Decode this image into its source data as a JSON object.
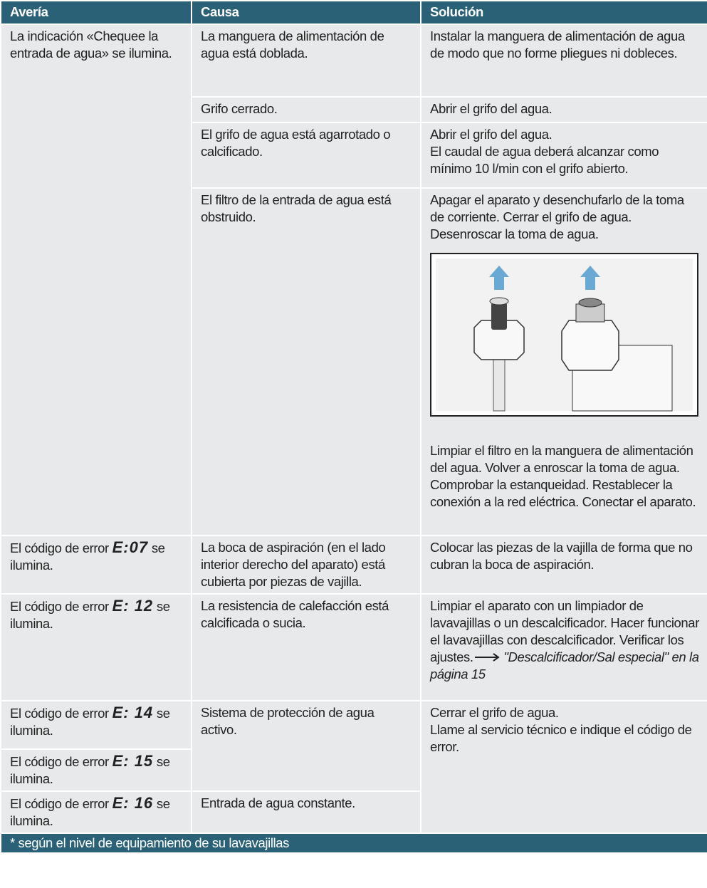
{
  "table": {
    "header": [
      "Avería",
      "Causa",
      "Solución"
    ],
    "rows": [
      {
        "fault": "La indicación «Chequee la entrada de agua» se ilumina.",
        "causes": [
          {
            "cause": "La manguera de alimentación de agua está doblada.",
            "solution": [
              "Instalar la manguera de alimentación de agua de modo que no forme pliegues ni dobleces."
            ]
          },
          {
            "cause": "Grifo cerrado.",
            "solution": [
              "Abrir el grifo del agua."
            ]
          },
          {
            "cause": "El grifo de agua está agarrotado o calcificado.",
            "solution": [
              "Abrir el grifo del agua.",
              "El caudal de agua deberá alcanzar como mínimo 10 l/min con el grifo abierto."
            ]
          },
          {
            "cause": "El filtro de la entrada de agua está obstruido.",
            "solution": [
              "Apagar el aparato y desenchufarlo de la toma de corriente. Cerrar el grifo de agua. Desenroscar la toma de agua.",
              "Limpiar el filtro en la manguera de alimentación del agua. Volver a enroscar la toma de agua. Comprobar la estanqueidad. Restablecer la conexión a la red eléctrica. Conectar el aparato."
            ]
          }
        ]
      },
      {
        "fault": {
          "prefix": "El código de error",
          "code": "E:07",
          "suffix": "se ilumina."
        },
        "cause": "La boca de aspiración (en el lado interior derecho del aparato) está cubierta por piezas de vajilla.",
        "solution": [
          "Colocar las piezas de la vajilla de forma que no cubran la boca de aspiración."
        ]
      },
      {
        "fault": {
          "prefix": "El código de error",
          "code": "E: 12",
          "suffix": "se ilumina."
        },
        "cause": "La resistencia de calefacción está calcificada o sucia.",
        "solution": [
          "Limpiar el aparato con un limpiador de lavavajillas o un descalcificador. Hacer funcionar el lavavajillas con descalcificador. Verificar los ajustes.",
          "\"Descalcificador/Sal especial\" en la página 15"
        ]
      },
      {
        "faults": [
          {
            "prefix": "El código de error",
            "code": "E: 14",
            "suffix": "se ilumina."
          },
          {
            "prefix": "El código de error",
            "code": "E: 15",
            "suffix": "se ilumina."
          },
          {
            "prefix": "El código de error",
            "code": "E: 16",
            "suffix": "se ilumina."
          }
        ],
        "causes": [
          "Sistema de protección de agua activo.",
          "Entrada de agua constante."
        ],
        "solution": [
          "Cerrar el grifo de agua.",
          "Llame al servicio técnico e indique el código de error."
        ]
      }
    ],
    "footer": "* según el nivel de equipamiento de su lavavajillas"
  }
}
